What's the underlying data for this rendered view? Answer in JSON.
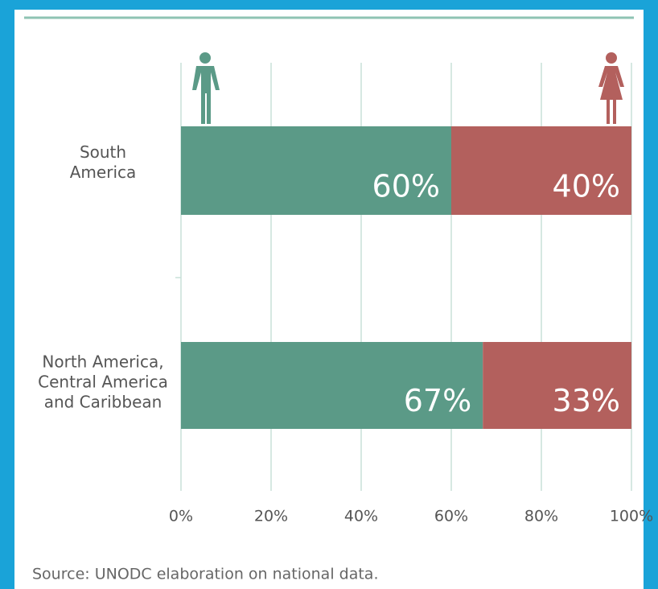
{
  "chart_data": {
    "type": "stacked-bar-horizontal",
    "categories": [
      "South America",
      "North America, Central America and Caribbean"
    ],
    "series": [
      {
        "name": "Men",
        "color": "#5b9a87",
        "values": [
          60,
          67
        ],
        "value_labels": [
          "60%",
          "67%"
        ]
      },
      {
        "name": "Women",
        "color": "#b3605d",
        "values": [
          40,
          33
        ],
        "value_labels": [
          "40%",
          "33%"
        ]
      }
    ],
    "xlim": [
      0,
      100
    ],
    "xticks": [
      {
        "value": 0,
        "label": "0%"
      },
      {
        "value": 20,
        "label": "20%"
      },
      {
        "value": 40,
        "label": "40%"
      },
      {
        "value": 60,
        "label": "60%"
      },
      {
        "value": 80,
        "label": "80%"
      },
      {
        "value": 100,
        "label": "100%"
      }
    ],
    "grid": true,
    "source": "Source: UNODC elaboration on national data."
  }
}
